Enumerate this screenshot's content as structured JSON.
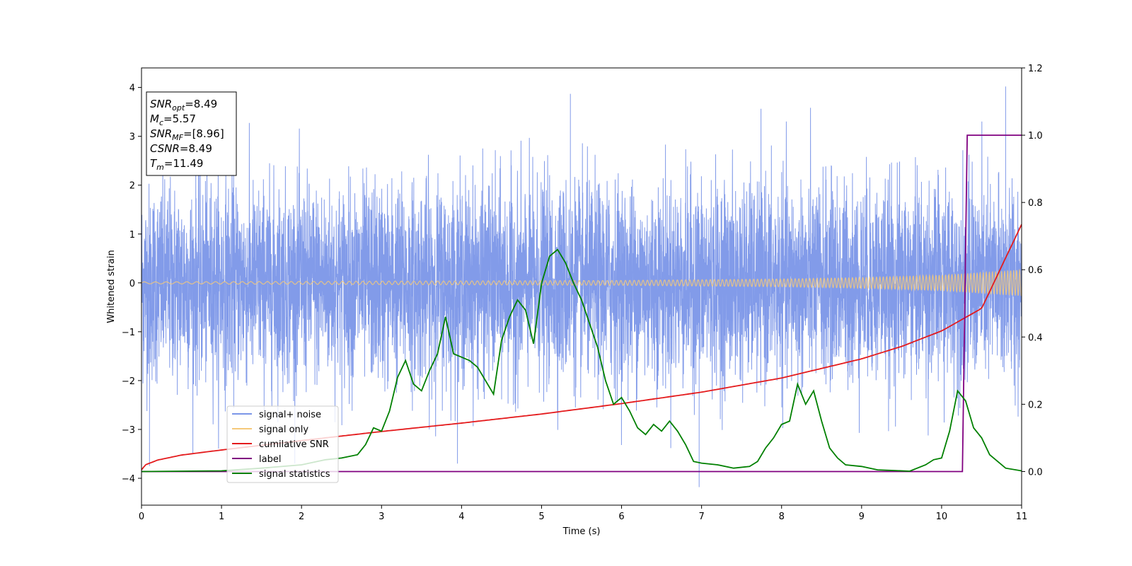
{
  "chart_data": {
    "type": "line",
    "xlabel": "Time (s)",
    "ylabel_left": "Whitened strain",
    "ylabel_right": "",
    "xlim": [
      0,
      11
    ],
    "ylim_left": [
      -4.55,
      4.4
    ],
    "ylim_right": [
      -0.1,
      1.2
    ],
    "x_ticks": [
      0,
      1,
      2,
      3,
      4,
      5,
      6,
      7,
      8,
      9,
      10,
      11
    ],
    "y_ticks_left": [
      -4,
      -3,
      -2,
      -1,
      0,
      1,
      2,
      3,
      4
    ],
    "y_ticks_right": [
      0.0,
      0.2,
      0.4,
      0.6,
      0.8,
      1.0,
      1.2
    ],
    "grid": false,
    "legend_position": "lower-left",
    "annotation": [
      {
        "base": "SNR",
        "sub": "opt",
        "value": "=8.49"
      },
      {
        "base": "M",
        "sub": "c",
        "value": "=5.57"
      },
      {
        "base": "SNR",
        "sub": "MF",
        "value": "=[8.96]"
      },
      {
        "base": "CSNR",
        "sub": "",
        "value": "=8.49"
      },
      {
        "base": "T",
        "sub": "m",
        "value": "=11.49"
      }
    ],
    "series": [
      {
        "name": "signal+ noise",
        "color": "#7b96e8",
        "axis": "left",
        "kind": "noise",
        "sigma": 1.0,
        "typical_range": [
          -2.6,
          2.5
        ],
        "extremes": [
          {
            "x": 5.36,
            "y": 3.87
          },
          {
            "x": 10.8,
            "y": 4.02
          },
          {
            "x": 6.97,
            "y": -4.18
          },
          {
            "x": 0.1,
            "y": -3.75
          }
        ]
      },
      {
        "name": "signal only",
        "color": "#f5c97a",
        "axis": "left",
        "kind": "chirp",
        "envelope": {
          "x": [
            0,
            2,
            4,
            6,
            8,
            9,
            10,
            11
          ],
          "y": [
            0.02,
            0.03,
            0.04,
            0.05,
            0.08,
            0.11,
            0.16,
            0.27
          ]
        }
      },
      {
        "name": "cumilative SNR",
        "color": "#e41a1c",
        "axis": "right",
        "x": [
          0,
          0.05,
          0.2,
          0.5,
          1,
          2,
          3,
          4,
          5,
          6,
          7,
          8,
          9,
          9.5,
          10,
          10.5,
          11
        ],
        "y": [
          0.005,
          0.02,
          0.034,
          0.049,
          0.064,
          0.092,
          0.119,
          0.144,
          0.171,
          0.202,
          0.236,
          0.278,
          0.335,
          0.372,
          0.418,
          0.485,
          0.735
        ]
      },
      {
        "name": "label",
        "color": "#800080",
        "axis": "right",
        "x": [
          0,
          10.26,
          10.32,
          11
        ],
        "y": [
          0,
          0,
          1,
          1
        ]
      },
      {
        "name": "signal statistics",
        "color": "#008000",
        "axis": "right",
        "x": [
          0,
          1.0,
          1.5,
          2.0,
          2.3,
          2.5,
          2.7,
          2.8,
          2.9,
          3.0,
          3.1,
          3.2,
          3.3,
          3.4,
          3.5,
          3.6,
          3.7,
          3.8,
          3.9,
          4.0,
          4.1,
          4.2,
          4.3,
          4.4,
          4.5,
          4.6,
          4.7,
          4.8,
          4.9,
          5.0,
          5.1,
          5.2,
          5.3,
          5.4,
          5.5,
          5.6,
          5.7,
          5.8,
          5.9,
          6.0,
          6.1,
          6.2,
          6.3,
          6.4,
          6.5,
          6.6,
          6.7,
          6.8,
          6.9,
          7.0,
          7.2,
          7.4,
          7.6,
          7.7,
          7.8,
          7.9,
          8.0,
          8.1,
          8.2,
          8.3,
          8.4,
          8.5,
          8.6,
          8.7,
          8.8,
          9.0,
          9.2,
          9.4,
          9.6,
          9.8,
          9.9,
          10.0,
          10.1,
          10.2,
          10.3,
          10.4,
          10.5,
          10.6,
          10.8,
          11.0
        ],
        "y": [
          0.0,
          0.002,
          0.01,
          0.02,
          0.035,
          0.04,
          0.05,
          0.08,
          0.13,
          0.12,
          0.18,
          0.28,
          0.33,
          0.26,
          0.24,
          0.3,
          0.35,
          0.46,
          0.35,
          0.34,
          0.33,
          0.31,
          0.27,
          0.23,
          0.39,
          0.46,
          0.51,
          0.48,
          0.38,
          0.56,
          0.64,
          0.66,
          0.62,
          0.56,
          0.51,
          0.44,
          0.37,
          0.27,
          0.2,
          0.22,
          0.18,
          0.13,
          0.11,
          0.14,
          0.12,
          0.15,
          0.12,
          0.08,
          0.03,
          0.025,
          0.02,
          0.01,
          0.015,
          0.03,
          0.07,
          0.1,
          0.14,
          0.15,
          0.26,
          0.2,
          0.24,
          0.15,
          0.07,
          0.04,
          0.02,
          0.015,
          0.005,
          0.003,
          0.001,
          0.02,
          0.035,
          0.04,
          0.12,
          0.24,
          0.21,
          0.13,
          0.1,
          0.05,
          0.01,
          0.002
        ]
      }
    ]
  }
}
